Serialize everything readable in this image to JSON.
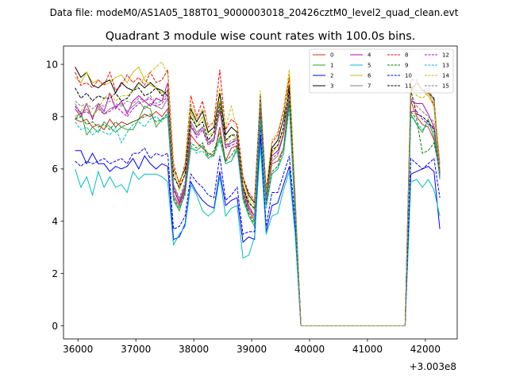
{
  "figure": {
    "suptitle": "Data file: modeM0/AS1A05_188T01_9000003018_20426cztM0_level2_quad_clean.evt"
  },
  "chart_data": {
    "type": "line",
    "title": "Quadrant 3 module wise count rates with 100.0s bins.",
    "xlabel": "",
    "ylabel": "",
    "x_offset_label": "+3.003e8",
    "xlim": [
      35750,
      42550
    ],
    "ylim": [
      -0.5,
      10.7
    ],
    "xticks": [
      36000,
      37000,
      38000,
      39000,
      40000,
      41000,
      42000
    ],
    "yticks": [
      0,
      2,
      4,
      6,
      8,
      10
    ],
    "grid": false,
    "legend_placement": "upper-right",
    "x_start": 35950,
    "x_step": 100,
    "gap": {
      "zero_from": 39800,
      "zero_to": 40300,
      "zero_x2_from": 40400,
      "zero_x2_to": 41700,
      "resume": 41650
    },
    "series": [
      {
        "name": "0",
        "color": "#d62728",
        "style": "solid",
        "seg1": [
          7.9,
          7.8,
          7.9,
          7.6,
          7.7,
          7.5,
          7.9,
          7.6,
          7.8,
          7.7,
          7.8,
          7.9,
          8.1,
          8.0,
          8.2,
          8.0,
          8.3,
          5.0,
          4.6,
          5.2,
          7.3,
          7.0,
          6.8,
          6.6,
          6.5,
          7.6,
          6.3,
          6.8,
          6.9,
          5.0,
          4.4,
          4.0,
          8.4,
          4.8,
          6.2,
          6.3,
          6.8,
          8.7,
          4.5,
          0.0
        ],
        "seg2": [
          0.0,
          8.6,
          8.0,
          7.7,
          7.6,
          7.1,
          5.8
        ]
      },
      {
        "name": "1",
        "color": "#2ca02c",
        "style": "solid",
        "seg1": [
          7.9,
          8.2,
          7.3,
          7.6,
          7.4,
          7.8,
          7.6,
          7.4,
          7.6,
          7.5,
          7.5,
          7.9,
          8.4,
          8.3,
          7.6,
          7.9,
          8.0,
          4.8,
          4.4,
          5.1,
          6.8,
          6.7,
          6.9,
          6.4,
          6.6,
          7.2,
          6.2,
          6.3,
          6.8,
          4.9,
          4.2,
          3.8,
          8.0,
          4.6,
          5.8,
          6.0,
          6.6,
          8.5,
          4.3,
          0.0
        ],
        "seg2": [
          0.0,
          8.1,
          7.7,
          7.4,
          7.9,
          7.2,
          5.9
        ]
      },
      {
        "name": "2",
        "color": "#0000ff",
        "style": "solid",
        "seg1": [
          6.7,
          6.7,
          6.2,
          6.6,
          6.2,
          6.2,
          5.9,
          6.1,
          6.0,
          6.1,
          6.4,
          6.0,
          6.5,
          6.2,
          6.0,
          6.2,
          6.1,
          3.3,
          3.4,
          3.9,
          5.5,
          5.1,
          4.8,
          4.6,
          4.5,
          5.9,
          4.6,
          4.8,
          4.9,
          3.2,
          3.4,
          3.3,
          7.3,
          3.6,
          4.6,
          4.7,
          5.4,
          6.1,
          3.7,
          0.0
        ],
        "seg2": [
          0.0,
          5.8,
          5.9,
          6.0,
          6.1,
          5.9,
          3.7
        ]
      },
      {
        "name": "3",
        "color": "#000000",
        "style": "solid",
        "seg1": [
          9.9,
          9.5,
          9.7,
          9.2,
          9.1,
          9.3,
          9.4,
          8.9,
          9.3,
          9.1,
          9.0,
          9.3,
          9.1,
          9.3,
          9.1,
          9.0,
          8.8,
          6.0,
          5.5,
          6.0,
          8.3,
          7.8,
          8.2,
          7.4,
          7.6,
          8.9,
          7.3,
          7.6,
          7.4,
          5.6,
          5.0,
          4.7,
          8.8,
          5.1,
          6.8,
          7.1,
          7.9,
          9.2,
          4.9,
          0.0
        ],
        "seg2": [
          0.0,
          9.0,
          9.3,
          9.0,
          8.9,
          8.7,
          5.8
        ]
      },
      {
        "name": "4",
        "color": "#bf00bf",
        "style": "solid",
        "seg1": [
          8.3,
          8.0,
          8.5,
          7.9,
          8.5,
          8.2,
          8.9,
          8.3,
          8.6,
          8.1,
          8.6,
          8.8,
          8.6,
          8.4,
          8.7,
          8.6,
          9.3,
          5.2,
          4.7,
          5.3,
          7.6,
          7.3,
          7.6,
          7.0,
          7.1,
          8.3,
          6.9,
          7.0,
          7.1,
          5.3,
          4.6,
          4.2,
          8.6,
          4.9,
          6.5,
          6.7,
          7.3,
          8.9,
          4.7,
          0.0
        ],
        "seg2": [
          0.0,
          8.6,
          8.5,
          8.5,
          8.1,
          7.6,
          5.6
        ]
      },
      {
        "name": "5",
        "color": "#00bfbf",
        "style": "solid",
        "seg1": [
          6.0,
          5.3,
          5.7,
          5.0,
          5.9,
          5.3,
          5.7,
          5.3,
          5.4,
          5.1,
          5.9,
          5.6,
          5.8,
          5.8,
          5.8,
          5.7,
          5.5,
          3.1,
          3.5,
          3.8,
          5.4,
          5.0,
          4.4,
          4.2,
          4.4,
          5.7,
          4.2,
          4.5,
          4.6,
          2.6,
          2.7,
          3.4,
          6.9,
          3.5,
          4.2,
          4.3,
          5.2,
          5.9,
          3.5,
          0.0
        ],
        "seg2": [
          0.0,
          5.5,
          5.6,
          5.3,
          5.6,
          5.2,
          4.2
        ]
      },
      {
        "name": "6",
        "color": "#bfbf00",
        "style": "solid",
        "seg1": [
          9.5,
          9.3,
          9.7,
          9.3,
          9.4,
          9.2,
          9.3,
          9.5,
          9.6,
          9.3,
          9.7,
          9.9,
          9.4,
          9.2,
          9.1,
          8.9,
          9.0,
          5.9,
          5.2,
          5.8,
          8.2,
          7.6,
          8.0,
          7.3,
          7.4,
          8.6,
          7.0,
          7.3,
          7.2,
          5.4,
          4.8,
          4.4,
          8.6,
          4.9,
          6.6,
          6.9,
          7.5,
          9.6,
          4.8,
          0.0
        ],
        "seg2": [
          0.0,
          9.2,
          9.0,
          9.0,
          8.8,
          8.4,
          5.6
        ]
      },
      {
        "name": "7",
        "color": "#7f7f7f",
        "style": "solid",
        "seg1": [
          8.5,
          8.1,
          8.3,
          8.0,
          8.4,
          8.1,
          8.3,
          8.4,
          8.5,
          8.2,
          8.4,
          8.6,
          8.3,
          8.5,
          8.4,
          8.3,
          8.7,
          5.4,
          4.8,
          5.4,
          7.8,
          7.4,
          7.6,
          7.0,
          7.2,
          8.3,
          6.8,
          7.0,
          7.2,
          5.2,
          4.5,
          4.1,
          8.6,
          4.8,
          6.3,
          6.5,
          7.3,
          8.7,
          4.6,
          0.0
        ],
        "seg2": [
          0.0,
          8.9,
          9.3,
          9.0,
          9.1,
          8.6,
          6.2
        ]
      },
      {
        "name": "8",
        "color": "#ff0000",
        "style": "dashed",
        "seg1": [
          9.7,
          9.2,
          9.3,
          9.1,
          9.4,
          9.2,
          9.7,
          9.0,
          9.2,
          9.6,
          9.3,
          9.5,
          9.2,
          9.7,
          9.3,
          9.4,
          9.8,
          6.2,
          5.4,
          6.2,
          8.8,
          8.0,
          8.6,
          7.6,
          7.8,
          9.8,
          7.5,
          7.9,
          7.7,
          5.7,
          5.1,
          4.8,
          8.9,
          5.2,
          7.0,
          7.3,
          8.2,
          9.5,
          5.0,
          0.0
        ],
        "seg2": [
          0.0,
          9.4,
          9.4,
          9.0,
          9.0,
          8.4,
          6.0
        ]
      },
      {
        "name": "9",
        "color": "#008000",
        "style": "dashed",
        "seg1": [
          7.9,
          8.0,
          7.7,
          7.8,
          7.6,
          7.7,
          7.5,
          7.8,
          7.6,
          7.7,
          7.8,
          7.9,
          8.0,
          8.1,
          7.8,
          7.9,
          8.1,
          4.9,
          4.5,
          5.1,
          7.0,
          6.8,
          7.0,
          6.5,
          6.7,
          7.4,
          6.3,
          6.5,
          6.9,
          5.0,
          4.3,
          3.9,
          8.1,
          4.7,
          5.9,
          6.1,
          6.8,
          8.6,
          4.4,
          0.0
        ],
        "seg2": [
          0.0,
          8.2,
          7.9,
          6.6,
          6.7,
          7.0,
          5.9
        ]
      },
      {
        "name": "10",
        "color": "#0000ff",
        "style": "dashed",
        "seg1": [
          6.3,
          6.1,
          6.3,
          6.2,
          6.3,
          6.4,
          6.2,
          6.3,
          6.4,
          6.2,
          6.6,
          6.6,
          6.8,
          6.4,
          6.6,
          6.5,
          6.6,
          3.7,
          3.8,
          4.2,
          5.8,
          5.5,
          5.3,
          5.0,
          4.9,
          6.5,
          4.8,
          5.0,
          5.3,
          3.5,
          3.6,
          3.6,
          7.6,
          3.8,
          5.1,
          5.1,
          5.8,
          6.5,
          4.1,
          0.0
        ],
        "seg2": [
          0.0,
          6.4,
          6.2,
          6.0,
          6.2,
          6.4,
          4.9
        ]
      },
      {
        "name": "11",
        "color": "#000000",
        "style": "dashed",
        "seg1": [
          9.1,
          8.7,
          8.9,
          8.6,
          8.8,
          8.7,
          8.7,
          8.9,
          8.6,
          8.7,
          9.0,
          9.1,
          8.8,
          8.9,
          9.1,
          8.8,
          9.0,
          5.7,
          5.3,
          5.8,
          8.0,
          7.6,
          7.8,
          7.1,
          7.4,
          8.5,
          7.1,
          7.3,
          7.3,
          5.3,
          4.7,
          4.5,
          8.7,
          5.0,
          6.7,
          6.9,
          7.6,
          9.0,
          4.8,
          0.0
        ],
        "seg2": [
          0.0,
          9.0,
          8.1,
          8.0,
          7.8,
          7.5,
          5.8
        ]
      },
      {
        "name": "12",
        "color": "#bf00bf",
        "style": "dashed",
        "seg1": [
          8.4,
          8.1,
          8.2,
          8.0,
          8.3,
          8.1,
          8.2,
          8.4,
          8.2,
          8.0,
          8.3,
          8.5,
          8.6,
          8.7,
          8.4,
          8.5,
          8.8,
          5.3,
          4.7,
          5.3,
          7.7,
          7.2,
          7.5,
          6.9,
          7.1,
          8.2,
          6.8,
          6.9,
          7.0,
          5.1,
          4.5,
          4.2,
          8.5,
          4.8,
          6.4,
          6.6,
          7.3,
          8.8,
          4.6,
          0.0
        ],
        "seg2": [
          0.0,
          8.2,
          8.2,
          7.9,
          7.7,
          7.6,
          5.7
        ]
      },
      {
        "name": "13",
        "color": "#00bfbf",
        "style": "dashed",
        "seg1": [
          7.8,
          7.5,
          7.6,
          7.3,
          7.5,
          7.4,
          7.3,
          7.6,
          7.0,
          7.4,
          7.7,
          7.8,
          7.6,
          7.9,
          8.0,
          7.8,
          8.2,
          4.8,
          4.5,
          5.0,
          6.9,
          6.6,
          6.7,
          6.4,
          6.5,
          7.1,
          6.2,
          6.3,
          6.7,
          4.8,
          4.2,
          3.9,
          7.9,
          4.5,
          5.8,
          6.0,
          6.6,
          8.3,
          4.3,
          0.0
        ],
        "seg2": [
          0.0,
          8.0,
          7.8,
          7.5,
          7.7,
          7.4,
          5.6
        ]
      },
      {
        "name": "14",
        "color": "#bfbf00",
        "style": "dashed",
        "seg1": [
          8.0,
          8.2,
          8.5,
          8.0,
          8.3,
          8.7,
          8.9,
          8.6,
          8.8,
          8.8,
          9.0,
          9.2,
          9.5,
          9.7,
          9.9,
          10.1,
          9.6,
          6.0,
          5.5,
          6.1,
          8.5,
          7.9,
          8.3,
          7.7,
          7.7,
          9.1,
          7.6,
          8.4,
          7.5,
          5.6,
          4.9,
          4.6,
          9.0,
          5.1,
          7.1,
          7.4,
          8.3,
          9.8,
          5.1,
          0.0
        ],
        "seg2": [
          0.0,
          9.2,
          8.8,
          8.7,
          8.9,
          8.5,
          6.0
        ]
      },
      {
        "name": "15",
        "color": "#7f7f7f",
        "style": "dashed",
        "seg1": [
          8.6,
          8.4,
          8.5,
          8.3,
          8.5,
          8.4,
          8.6,
          8.5,
          8.4,
          8.6,
          8.5,
          8.7,
          8.6,
          8.8,
          8.5,
          8.6,
          8.9,
          5.4,
          4.9,
          5.5,
          7.7,
          7.3,
          7.6,
          7.0,
          7.2,
          8.3,
          6.9,
          7.1,
          7.2,
          5.2,
          4.6,
          4.2,
          8.6,
          4.9,
          6.4,
          6.6,
          7.4,
          8.8,
          4.6,
          0.0
        ],
        "seg2": [
          0.0,
          8.7,
          8.4,
          8.2,
          8.0,
          7.8,
          5.8
        ]
      }
    ]
  }
}
